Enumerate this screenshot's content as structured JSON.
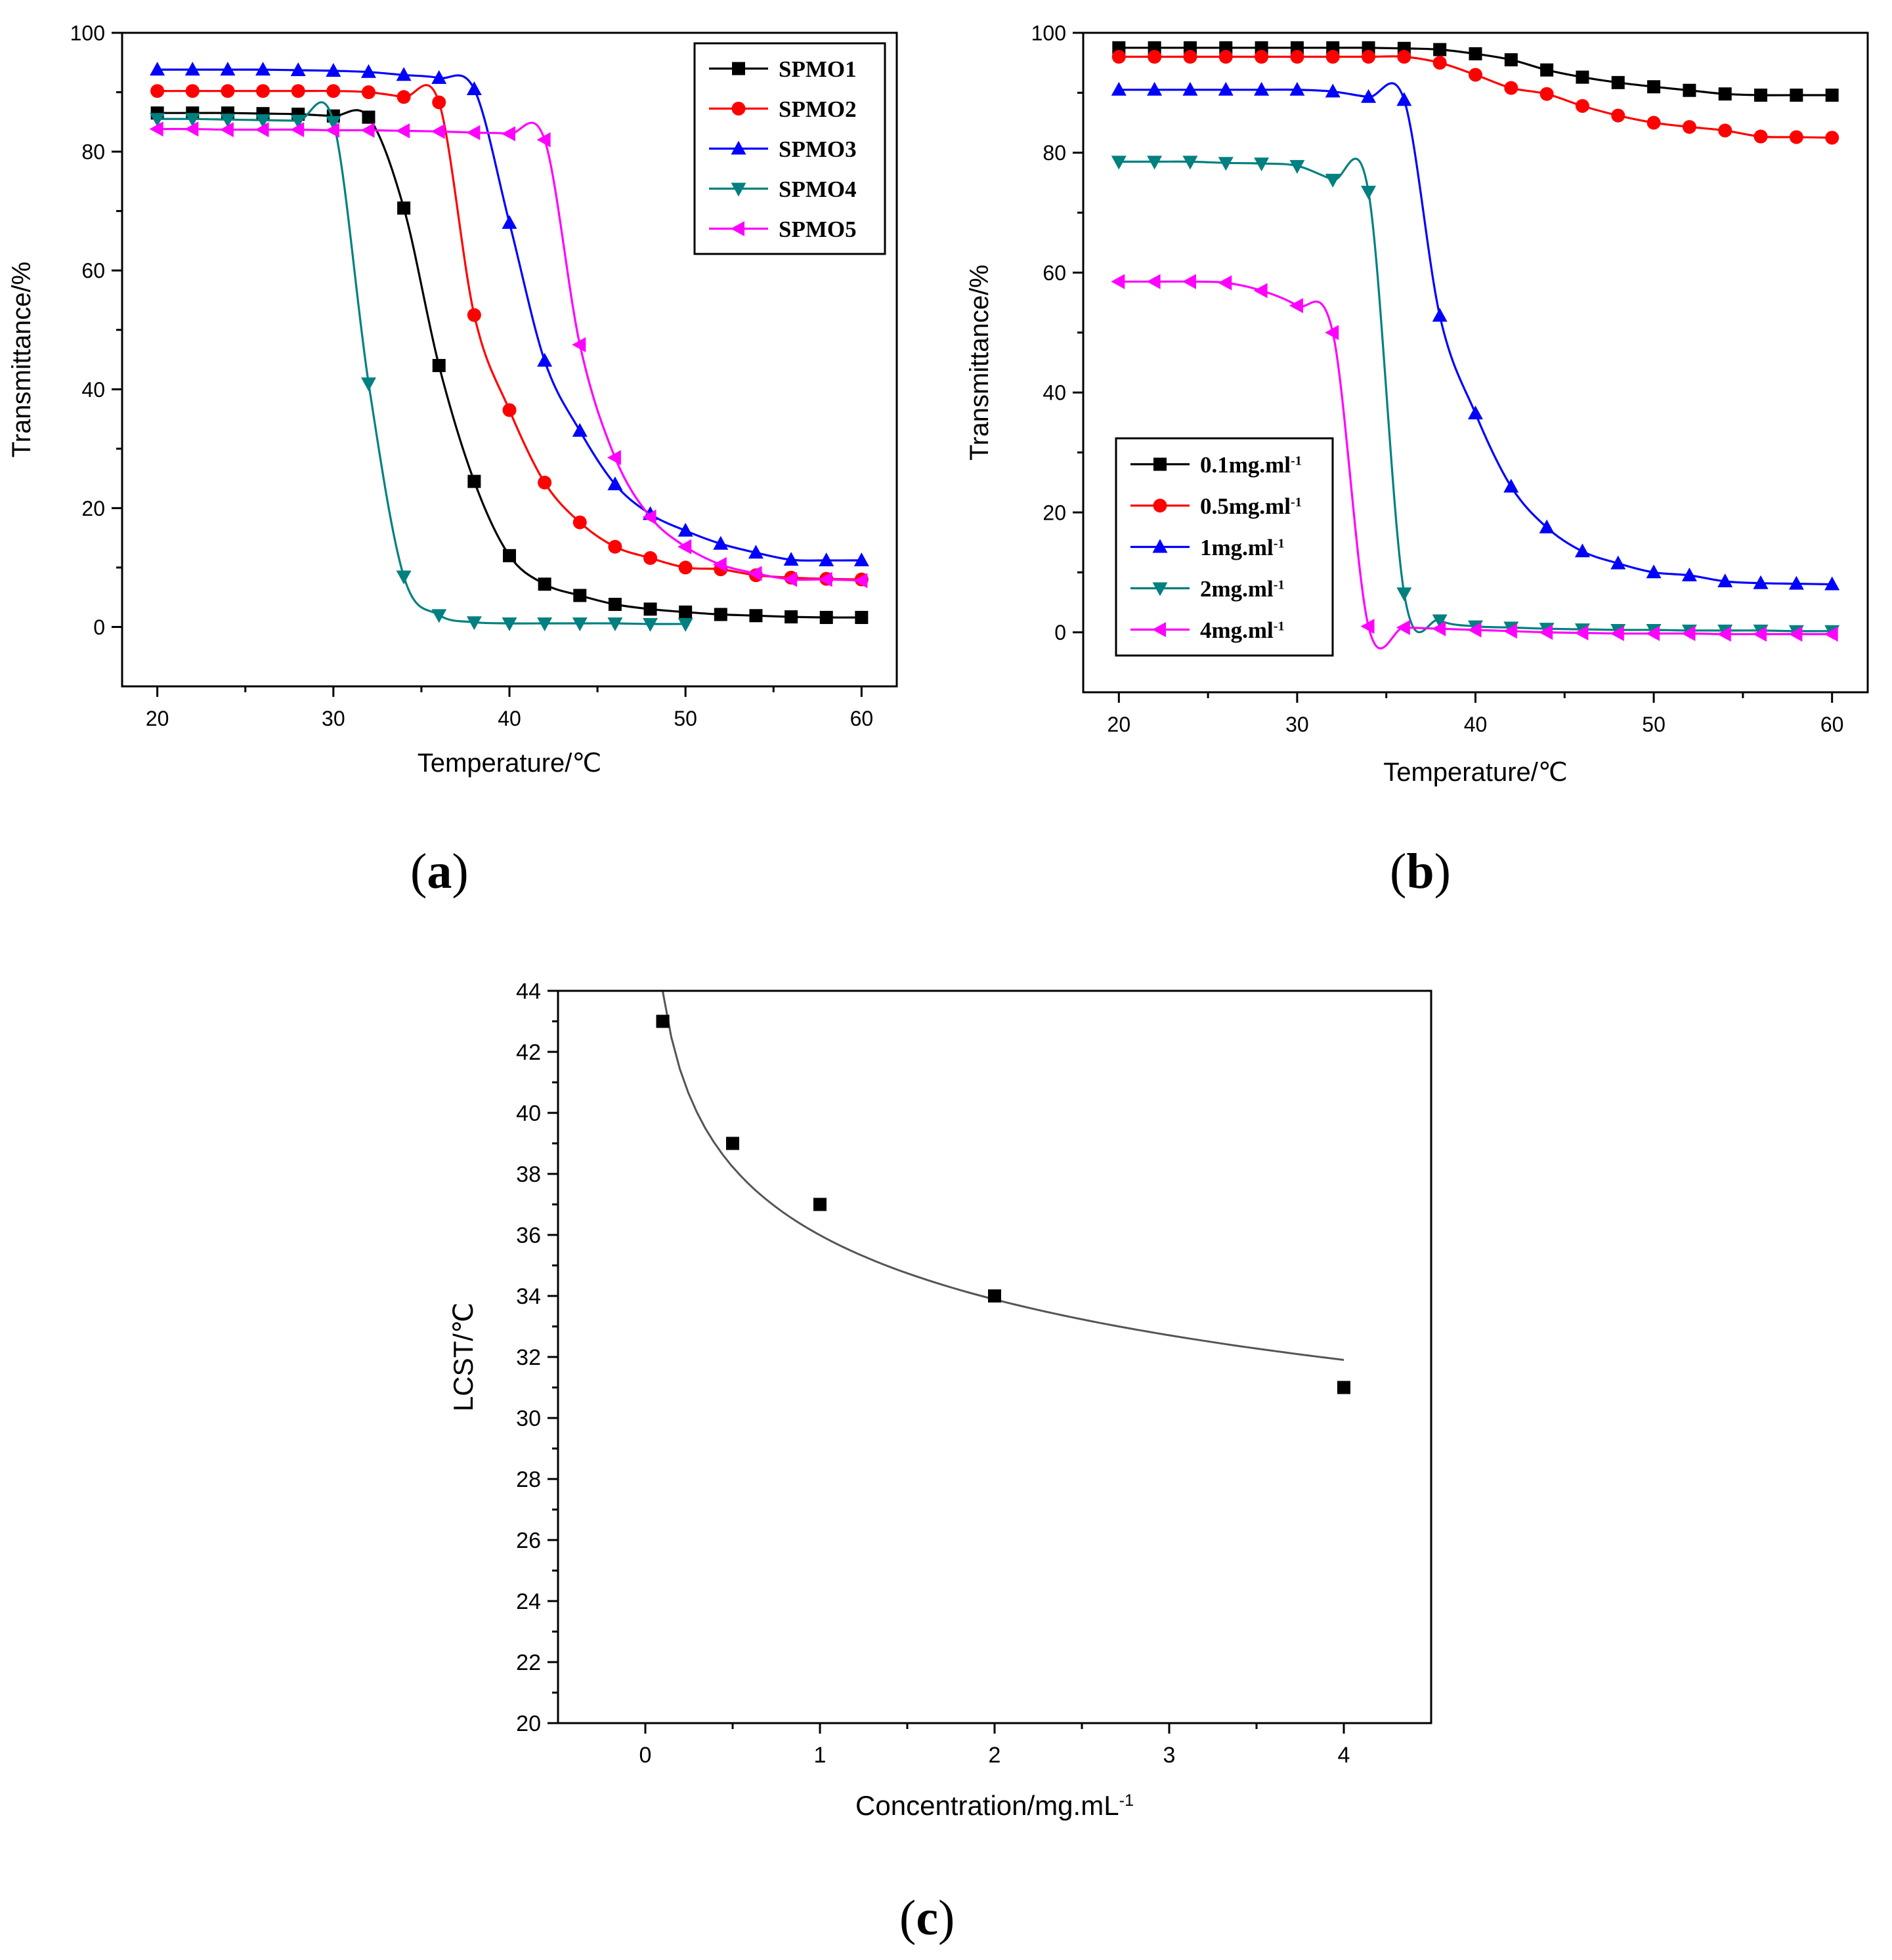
{
  "chart_data": [
    {
      "panel": "a",
      "panel_label": "a",
      "type": "line",
      "title": "",
      "xlabel": "Temperature/℃",
      "ylabel": "Transmittance/%",
      "xlim": [
        18,
        62
      ],
      "ylim": [
        -10,
        100
      ],
      "xticks": [
        20,
        30,
        40,
        50,
        60
      ],
      "yticks": [
        0,
        20,
        40,
        60,
        80,
        100
      ],
      "grid": false,
      "legend_position": "top-right",
      "series": [
        {
          "name": "SPMO1",
          "color": "#000000",
          "marker": "square",
          "x": [
            20,
            22,
            24,
            26,
            28,
            30,
            32,
            34,
            36,
            38,
            40,
            42,
            44,
            46,
            48,
            50,
            52,
            54,
            56,
            58,
            60
          ],
          "y": [
            86.5,
            86.5,
            86.5,
            86.4,
            86.3,
            86.0,
            85.8,
            70.5,
            44.0,
            24.5,
            12.0,
            7.2,
            5.3,
            3.8,
            3.0,
            2.5,
            2.1,
            1.9,
            1.7,
            1.6,
            1.6
          ]
        },
        {
          "name": "SPMO2",
          "color": "#ff0000",
          "marker": "circle",
          "x": [
            20,
            22,
            24,
            26,
            28,
            30,
            32,
            34,
            36,
            38,
            40,
            42,
            44,
            46,
            48,
            50,
            52,
            54,
            56,
            58,
            60
          ],
          "y": [
            90.2,
            90.2,
            90.2,
            90.2,
            90.2,
            90.2,
            90.0,
            89.2,
            88.3,
            52.5,
            36.5,
            24.3,
            17.6,
            13.5,
            11.6,
            10.0,
            9.7,
            8.7,
            8.3,
            8.1,
            8.0
          ]
        },
        {
          "name": "SPMO3",
          "color": "#0000ff",
          "marker": "triangle-up",
          "x": [
            20,
            22,
            24,
            26,
            28,
            30,
            32,
            34,
            36,
            38,
            40,
            42,
            44,
            46,
            48,
            50,
            52,
            54,
            56,
            58,
            60
          ],
          "y": [
            93.8,
            93.8,
            93.8,
            93.8,
            93.7,
            93.6,
            93.4,
            92.9,
            92.4,
            90.5,
            68.0,
            44.8,
            33.0,
            24.0,
            19.0,
            16.2,
            14.0,
            12.5,
            11.3,
            11.2,
            11.2
          ]
        },
        {
          "name": "SPMO4",
          "color": "#008080",
          "marker": "triangle-down",
          "x": [
            20,
            22,
            24,
            26,
            28,
            30,
            32,
            34,
            36,
            38,
            40,
            42,
            44,
            46,
            48,
            50
          ],
          "y": [
            85.5,
            85.5,
            85.4,
            85.3,
            85.2,
            85.0,
            41.0,
            8.5,
            2.0,
            0.8,
            0.6,
            0.6,
            0.6,
            0.6,
            0.5,
            0.5
          ]
        },
        {
          "name": "SPMO5",
          "color": "#ff00ff",
          "marker": "triangle-left",
          "x": [
            20,
            22,
            24,
            26,
            28,
            30,
            32,
            34,
            36,
            38,
            40,
            42,
            44,
            46,
            48,
            50,
            52,
            54,
            56,
            58,
            60
          ],
          "y": [
            83.8,
            83.8,
            83.7,
            83.7,
            83.7,
            83.6,
            83.6,
            83.5,
            83.4,
            83.2,
            83.0,
            82.0,
            47.5,
            28.5,
            18.5,
            13.5,
            10.5,
            9.0,
            8.0,
            8.0,
            7.8
          ]
        }
      ]
    },
    {
      "panel": "b",
      "panel_label": "b",
      "type": "line",
      "title": "",
      "xlabel": "Temperature/℃",
      "ylabel": "Transmittance/%",
      "xlim": [
        18,
        62
      ],
      "ylim": [
        -10,
        100
      ],
      "xticks": [
        20,
        30,
        40,
        50,
        60
      ],
      "yticks": [
        0,
        20,
        40,
        60,
        80,
        100
      ],
      "grid": false,
      "legend_position": "bottom-left",
      "series": [
        {
          "name": "0.1mg.ml",
          "sup": "-1",
          "color": "#000000",
          "marker": "square",
          "x": [
            20,
            22,
            24,
            26,
            28,
            30,
            32,
            34,
            36,
            38,
            40,
            42,
            44,
            46,
            48,
            50,
            52,
            54,
            56,
            58,
            60
          ],
          "y": [
            97.5,
            97.5,
            97.5,
            97.5,
            97.5,
            97.5,
            97.5,
            97.5,
            97.4,
            97.2,
            96.5,
            95.5,
            93.8,
            92.6,
            91.7,
            91.0,
            90.4,
            89.8,
            89.6,
            89.6,
            89.6
          ]
        },
        {
          "name": "0.5mg.ml",
          "sup": "-1",
          "color": "#ff0000",
          "marker": "circle",
          "x": [
            20,
            22,
            24,
            26,
            28,
            30,
            32,
            34,
            36,
            38,
            40,
            42,
            44,
            46,
            48,
            50,
            52,
            54,
            56,
            58,
            60
          ],
          "y": [
            96.0,
            96.0,
            96.0,
            96.0,
            96.0,
            96.0,
            96.0,
            96.0,
            96.0,
            95.0,
            93.0,
            90.8,
            89.8,
            87.8,
            86.2,
            85.0,
            84.3,
            83.7,
            82.7,
            82.6,
            82.5
          ]
        },
        {
          "name": "1mg.ml",
          "sup": "-1",
          "color": "#0000ff",
          "marker": "triangle-up",
          "x": [
            20,
            22,
            24,
            26,
            28,
            30,
            32,
            34,
            36,
            38,
            40,
            42,
            44,
            46,
            48,
            50,
            52,
            54,
            56,
            58,
            60
          ],
          "y": [
            90.5,
            90.5,
            90.5,
            90.5,
            90.5,
            90.5,
            90.2,
            89.3,
            88.8,
            52.8,
            36.5,
            24.3,
            17.5,
            13.5,
            11.5,
            10.0,
            9.5,
            8.5,
            8.2,
            8.1,
            8.0
          ]
        },
        {
          "name": "2mg.ml",
          "sup": "-1",
          "color": "#008080",
          "marker": "triangle-down",
          "x": [
            20,
            22,
            24,
            26,
            28,
            30,
            32,
            34,
            36,
            38,
            40,
            42,
            44,
            46,
            48,
            50,
            52,
            54,
            56,
            58,
            60
          ],
          "y": [
            78.5,
            78.5,
            78.5,
            78.3,
            78.2,
            77.8,
            75.5,
            73.5,
            6.5,
            2.0,
            1.0,
            0.8,
            0.6,
            0.5,
            0.4,
            0.4,
            0.3,
            0.3,
            0.3,
            0.2,
            0.2
          ]
        },
        {
          "name": "4mg.ml",
          "sup": "-1",
          "color": "#ff00ff",
          "marker": "triangle-left",
          "x": [
            20,
            22,
            24,
            26,
            28,
            30,
            32,
            34,
            36,
            38,
            40,
            42,
            44,
            46,
            48,
            50,
            52,
            54,
            56,
            58,
            60
          ],
          "y": [
            58.5,
            58.5,
            58.5,
            58.3,
            57.0,
            54.5,
            50.0,
            1.0,
            0.8,
            0.6,
            0.4,
            0.2,
            0.0,
            -0.1,
            -0.2,
            -0.2,
            -0.2,
            -0.3,
            -0.3,
            -0.3,
            -0.3
          ]
        }
      ]
    },
    {
      "panel": "c",
      "panel_label": "c",
      "type": "scatter",
      "title": "",
      "xlabel": "Concentration/mg.mL",
      "xlabel_sup": "-1",
      "ylabel": "LCST/℃",
      "xlim": [
        -0.5,
        4.5
      ],
      "ylim": [
        20,
        44
      ],
      "xticks": [
        0,
        1,
        2,
        3,
        4
      ],
      "yticks": [
        20,
        22,
        24,
        26,
        28,
        30,
        32,
        34,
        36,
        38,
        40,
        42,
        44
      ],
      "grid": false,
      "series": [
        {
          "name": "LCST",
          "color": "#000000",
          "marker": "square",
          "x": [
            0.1,
            0.5,
            1,
            2,
            4
          ],
          "y": [
            43,
            39,
            37,
            34,
            31
          ]
        }
      ],
      "fit_color": "#555555"
    }
  ]
}
